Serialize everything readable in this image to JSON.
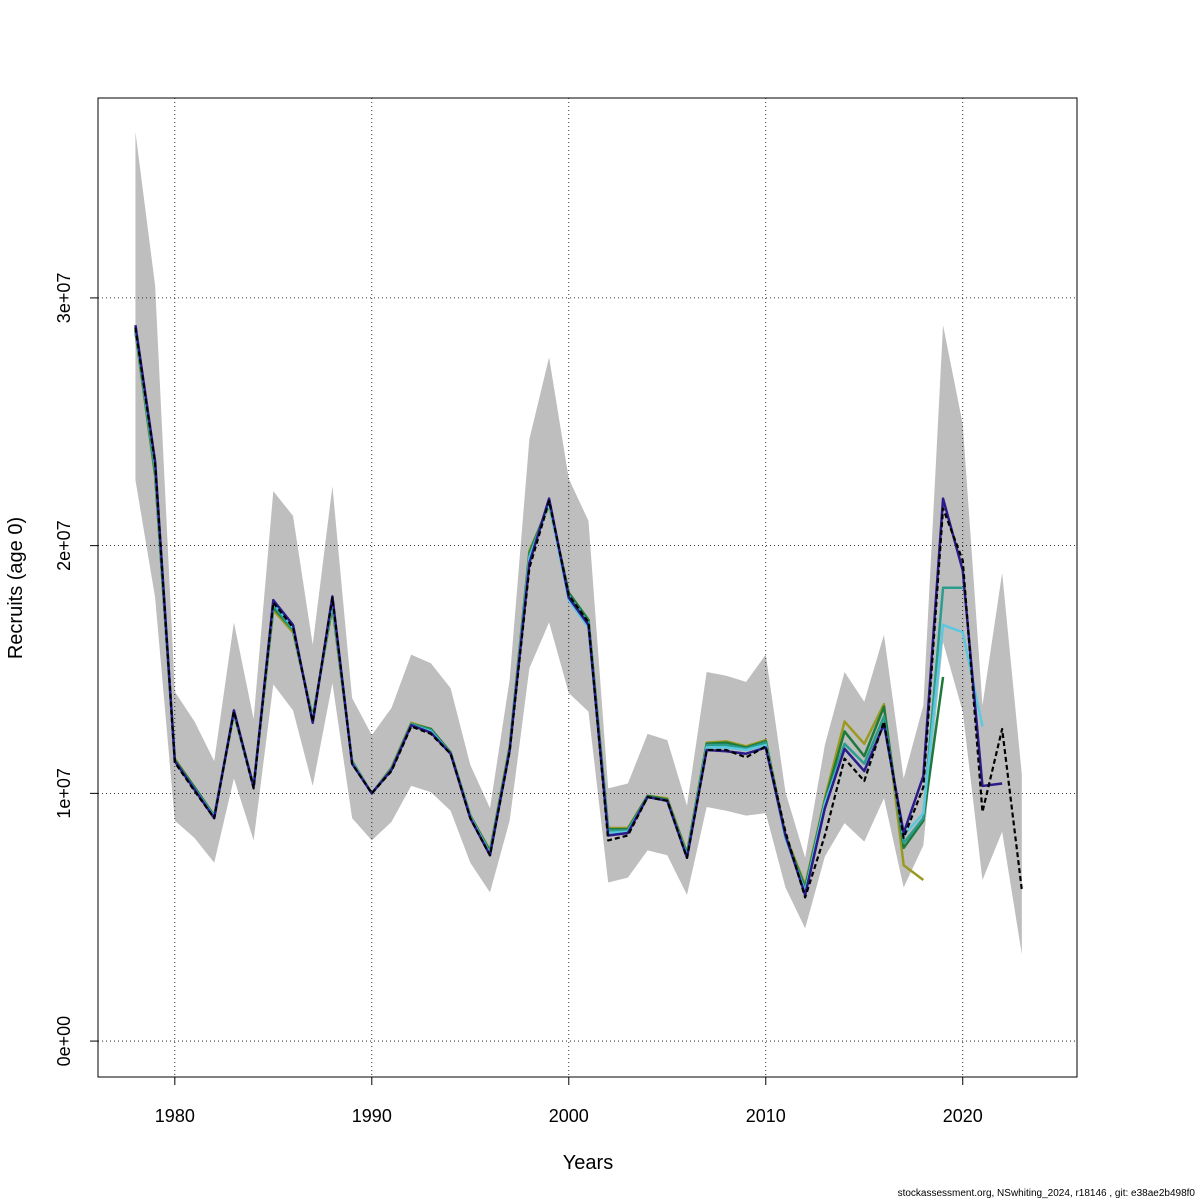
{
  "chart_data": {
    "type": "line",
    "xlabel": "Years",
    "ylabel": "Recruits (age 0)",
    "footer": "stockassessment.org, NSwhiting_2024, r18146 , git: e38ae2b498f0",
    "x": [
      1978,
      1979,
      1980,
      1981,
      1982,
      1983,
      1984,
      1985,
      1986,
      1987,
      1988,
      1989,
      1990,
      1991,
      1992,
      1993,
      1994,
      1995,
      1996,
      1997,
      1998,
      1999,
      2000,
      2001,
      2002,
      2003,
      2004,
      2005,
      2006,
      2007,
      2008,
      2009,
      2010,
      2011,
      2012,
      2013,
      2014,
      2015,
      2016,
      2017,
      2018,
      2019,
      2020,
      2021,
      2022,
      2023
    ],
    "xlim": [
      1976.1,
      2025.8
    ],
    "ylim": [
      -1450000,
      38070000
    ],
    "xticks": [
      1980,
      1990,
      2000,
      2010,
      2020
    ],
    "yticks": [
      {
        "value": 0,
        "label": "0e+00"
      },
      {
        "value": 10000000,
        "label": "1e+07"
      },
      {
        "value": 20000000,
        "label": "2e+07"
      },
      {
        "value": 30000000,
        "label": "3e+07"
      }
    ],
    "grid": true,
    "ci": {
      "color": "#bebebe",
      "upper": [
        36700000,
        30500000,
        14100000,
        12900000,
        11300000,
        16900000,
        13000000,
        22200000,
        21200000,
        16000000,
        22400000,
        13850000,
        12350000,
        13450000,
        15600000,
        15250000,
        14250000,
        11150000,
        9400000,
        14600000,
        24300000,
        27600000,
        22700000,
        21000000,
        10200000,
        10400000,
        12400000,
        12150000,
        9500000,
        14900000,
        14750000,
        14500000,
        15600000,
        10050000,
        7400000,
        11950000,
        14900000,
        13700000,
        16400000,
        10600000,
        13550000,
        28900000,
        24900000,
        13550000,
        18900000,
        10750000
      ],
      "lower": [
        22650000,
        17900000,
        8900000,
        8200000,
        7200000,
        10600000,
        8100000,
        14400000,
        13350000,
        10300000,
        14450000,
        9000000,
        8100000,
        8850000,
        10300000,
        10050000,
        9300000,
        7200000,
        6000000,
        8900000,
        15050000,
        16900000,
        14050000,
        13300000,
        6400000,
        6600000,
        7700000,
        7500000,
        5900000,
        9450000,
        9300000,
        9100000,
        9200000,
        6200000,
        4550000,
        7450000,
        8800000,
        8050000,
        9800000,
        6200000,
        7900000,
        16100000,
        13300000,
        6500000,
        8450000,
        3500000
      ]
    },
    "series": [
      {
        "color": "#000000",
        "dashed": true,
        "values": [
          28800000,
          23300000,
          11250000,
          10100000,
          9000000,
          13300000,
          10200000,
          17700000,
          16700000,
          12900000,
          17900000,
          11200000,
          10000000,
          10900000,
          12700000,
          12400000,
          11600000,
          9000000,
          7500000,
          11700000,
          19100000,
          21800000,
          18000000,
          16900000,
          8100000,
          8300000,
          9850000,
          9700000,
          7400000,
          11750000,
          11750000,
          11450000,
          11900000,
          8450000,
          5800000,
          8300000,
          11400000,
          10500000,
          12900000,
          8200000,
          10250000,
          21500000,
          19400000,
          9250000,
          12600000,
          6100000
        ]
      },
      {
        "color": "#2a1a8a",
        "values": [
          28900000,
          23400000,
          11300000,
          10150000,
          9000000,
          13350000,
          10250000,
          17800000,
          16800000,
          12850000,
          17950000,
          11200000,
          10000000,
          10950000,
          12750000,
          12450000,
          11600000,
          9000000,
          7500000,
          11750000,
          19300000,
          21900000,
          17900000,
          16800000,
          8300000,
          8400000,
          9850000,
          9700000,
          7400000,
          11750000,
          11700000,
          11600000,
          11850000,
          8300000,
          5900000,
          9400000,
          11800000,
          10900000,
          12800000,
          8400000,
          10700000,
          21900000,
          19000000,
          10300000,
          10400000,
          null
        ]
      },
      {
        "color": "#5bc8e0",
        "values": [
          28800000,
          23300000,
          11300000,
          10150000,
          9050000,
          13300000,
          10250000,
          17700000,
          16700000,
          12950000,
          17800000,
          11250000,
          10000000,
          10950000,
          12750000,
          12500000,
          11600000,
          9050000,
          7550000,
          11750000,
          19500000,
          21700000,
          17800000,
          16700000,
          8400000,
          8450000,
          9850000,
          9700000,
          7450000,
          11850000,
          11850000,
          11750000,
          11950000,
          8200000,
          6000000,
          9600000,
          11800000,
          10900000,
          12800000,
          8300000,
          9200000,
          16800000,
          16500000,
          12700000,
          null,
          null
        ]
      },
      {
        "color": "#2a9d8f",
        "values": [
          28700000,
          23000000,
          11300000,
          10200000,
          9050000,
          13250000,
          10250000,
          17600000,
          16600000,
          13000000,
          17700000,
          11250000,
          10000000,
          11000000,
          12800000,
          12550000,
          11600000,
          9050000,
          7600000,
          11800000,
          19600000,
          21700000,
          18000000,
          16900000,
          8500000,
          8500000,
          9850000,
          9700000,
          7500000,
          11950000,
          11950000,
          11800000,
          12050000,
          8200000,
          6100000,
          9600000,
          12000000,
          11200000,
          13100000,
          8000000,
          9000000,
          18300000,
          18300000,
          null,
          null,
          null
        ]
      },
      {
        "color": "#1e7a3c",
        "values": [
          28700000,
          22900000,
          11350000,
          10250000,
          9100000,
          13250000,
          10300000,
          17500000,
          16600000,
          13050000,
          17600000,
          11300000,
          10000000,
          11000000,
          12800000,
          12600000,
          11650000,
          9100000,
          7650000,
          11850000,
          19700000,
          21700000,
          18100000,
          17000000,
          8550000,
          8550000,
          9900000,
          9750000,
          7550000,
          12000000,
          12050000,
          11850000,
          12100000,
          8250000,
          6200000,
          9700000,
          12500000,
          11500000,
          13500000,
          7800000,
          8900000,
          14700000,
          null,
          null,
          null,
          null
        ]
      },
      {
        "color": "#9a9a20",
        "values": [
          28600000,
          22800000,
          11400000,
          10250000,
          9100000,
          13200000,
          10300000,
          17400000,
          16500000,
          13100000,
          17500000,
          11300000,
          10000000,
          11050000,
          12850000,
          12600000,
          11650000,
          9100000,
          7700000,
          11900000,
          19800000,
          21600000,
          18100000,
          17000000,
          8600000,
          8600000,
          9900000,
          9800000,
          7600000,
          12050000,
          12100000,
          11900000,
          12150000,
          8300000,
          6300000,
          9800000,
          12900000,
          12000000,
          13600000,
          7100000,
          6500000,
          null,
          null,
          null,
          null,
          null
        ]
      }
    ]
  }
}
